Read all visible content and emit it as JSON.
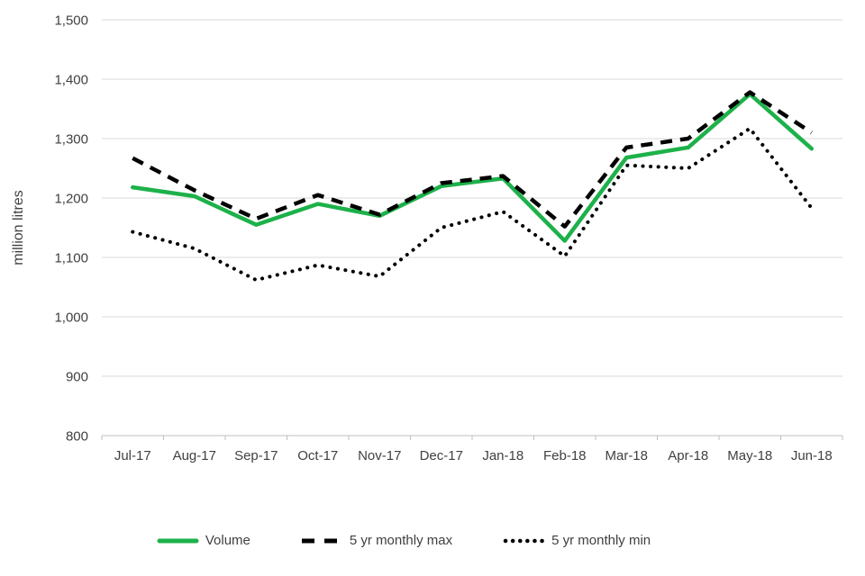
{
  "chart_data": {
    "type": "line",
    "title": "",
    "xlabel": "",
    "ylabel": "million litres",
    "categories": [
      "Jul-17",
      "Aug-17",
      "Sep-17",
      "Oct-17",
      "Nov-17",
      "Dec-17",
      "Jan-18",
      "Feb-18",
      "Mar-18",
      "Apr-18",
      "May-18",
      "Jun-18"
    ],
    "series": [
      {
        "name": "Volume",
        "style": "solid",
        "color": "#1DB14A",
        "values": [
          1218,
          1203,
          1155,
          1190,
          1170,
          1220,
          1233,
          1128,
          1268,
          1285,
          1375,
          1283
        ]
      },
      {
        "name": "5 yr monthly max",
        "style": "dashed",
        "color": "#000000",
        "values": [
          1267,
          1213,
          1165,
          1205,
          1172,
          1225,
          1237,
          1152,
          1285,
          1300,
          1378,
          1310
        ]
      },
      {
        "name": "5 yr monthly min",
        "style": "dotted",
        "color": "#000000",
        "values": [
          1143,
          1115,
          1062,
          1087,
          1068,
          1150,
          1177,
          1102,
          1255,
          1250,
          1317,
          1183
        ]
      }
    ],
    "ylim": [
      800,
      1500
    ],
    "y_tick_step": 100,
    "y_tick_labels": [
      "800",
      "900",
      "1,000",
      "1,100",
      "1,200",
      "1,300",
      "1,400",
      "1,500"
    ],
    "grid": "horizontal",
    "legend_position": "bottom"
  },
  "y_axis": {
    "title": "million litres"
  },
  "legend": {
    "volume_label": "Volume",
    "max_label": "5 yr monthly max",
    "min_label": "5 yr monthly min"
  },
  "colors": {
    "volume_green": "#1DB14A",
    "line_black": "#000000",
    "gridline": "#D9D9D9",
    "axis": "#BFBFBF",
    "text": "#404040"
  }
}
